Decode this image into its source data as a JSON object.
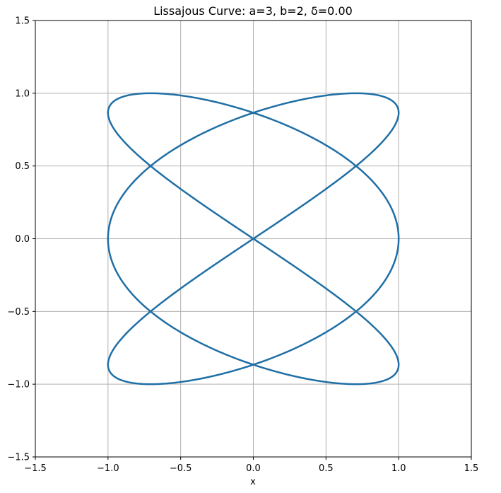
{
  "chart_data": {
    "type": "line",
    "title": "Lissajous Curve: a=3, b=2, δ=0.00",
    "xlabel": "x",
    "ylabel": "",
    "xlim": [
      -1.5,
      1.5
    ],
    "ylim": [
      -1.5,
      1.5
    ],
    "x_ticks": [
      -1.5,
      -1.0,
      -0.5,
      0.0,
      0.5,
      1.0,
      1.5
    ],
    "y_ticks": [
      -1.5,
      -1.0,
      -0.5,
      0.0,
      0.5,
      1.0,
      1.5
    ],
    "x_tick_labels": [
      "−1.5",
      "−1.0",
      "−0.5",
      "0.0",
      "0.5",
      "1.0",
      "1.5"
    ],
    "y_tick_labels": [
      "−1.5",
      "−1.0",
      "−0.5",
      "0.0",
      "0.5",
      "1.0",
      "1.5"
    ],
    "grid": true,
    "line_color": "#1f6fa5",
    "series": [
      {
        "equation": "x = sin(3t + 0.00), y = sin(2t), t ∈ [0, 2π]",
        "points": [
          [
            0.0,
            0.0
          ],
          [
            0.3827,
            0.2588
          ],
          [
            0.7071,
            0.5
          ],
          [
            0.9239,
            0.7071
          ],
          [
            1.0,
            0.866
          ],
          [
            0.9239,
            0.9659
          ],
          [
            0.7071,
            1.0
          ],
          [
            0.3827,
            0.9659
          ],
          [
            0.0,
            0.866
          ],
          [
            -0.3827,
            0.7071
          ],
          [
            -0.7071,
            0.5
          ],
          [
            -0.9239,
            0.2588
          ],
          [
            -1.0,
            0.0
          ],
          [
            -0.9239,
            -0.2588
          ],
          [
            -0.7071,
            -0.5
          ],
          [
            -0.3827,
            -0.7071
          ],
          [
            0.0,
            -0.866
          ],
          [
            0.3827,
            -0.9659
          ],
          [
            0.7071,
            -1.0
          ],
          [
            0.9239,
            -0.9659
          ],
          [
            1.0,
            -0.866
          ],
          [
            0.9239,
            -0.7071
          ],
          [
            0.7071,
            -0.5
          ],
          [
            0.3827,
            -0.2588
          ],
          [
            0.0,
            0.0
          ],
          [
            -0.3827,
            0.2588
          ],
          [
            -0.7071,
            0.5
          ],
          [
            -0.9239,
            0.7071
          ],
          [
            -1.0,
            0.866
          ],
          [
            -0.9239,
            0.9659
          ],
          [
            -0.7071,
            1.0
          ],
          [
            -0.3827,
            0.9659
          ],
          [
            0.0,
            0.866
          ],
          [
            0.3827,
            0.7071
          ],
          [
            0.7071,
            0.5
          ],
          [
            0.9239,
            0.2588
          ],
          [
            1.0,
            0.0
          ],
          [
            0.9239,
            -0.2588
          ],
          [
            0.7071,
            -0.5
          ],
          [
            0.3827,
            -0.7071
          ],
          [
            0.0,
            -0.866
          ],
          [
            -0.3827,
            -0.9659
          ],
          [
            -0.7071,
            -1.0
          ],
          [
            -0.9239,
            -0.9659
          ],
          [
            -1.0,
            -0.866
          ],
          [
            -0.9239,
            -0.7071
          ],
          [
            -0.7071,
            -0.5
          ],
          [
            -0.3827,
            -0.2588
          ],
          [
            0.0,
            0.0
          ]
        ]
      }
    ]
  }
}
